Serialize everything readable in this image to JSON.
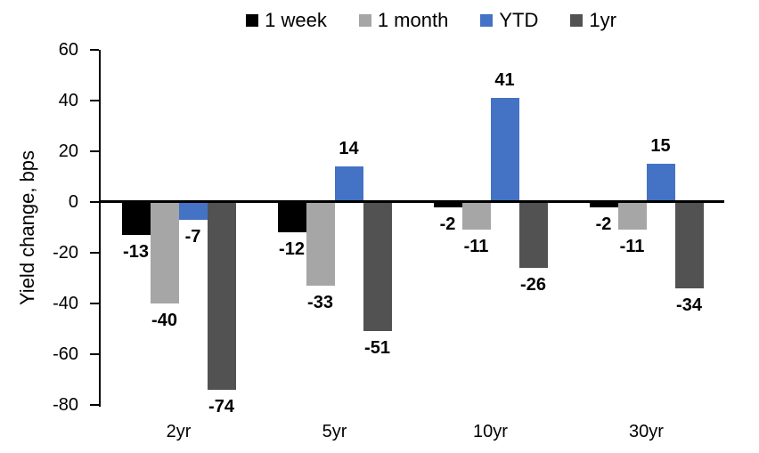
{
  "chart_data": {
    "type": "bar",
    "categories": [
      "2yr",
      "5yr",
      "10yr",
      "30yr"
    ],
    "series": [
      {
        "name": "1 week",
        "color": "#000000",
        "values": [
          -13,
          -12,
          -2,
          -2
        ]
      },
      {
        "name": "1 month",
        "color": "#a6a6a6",
        "values": [
          -40,
          -33,
          -11,
          -11
        ]
      },
      {
        "name": "YTD",
        "color": "#4472c4",
        "values": [
          -7,
          14,
          41,
          15
        ]
      },
      {
        "name": "1yr",
        "color": "#525252",
        "values": [
          -74,
          -51,
          -26,
          -34
        ]
      }
    ],
    "title": "",
    "xlabel": "",
    "ylabel": "Yield change, bps",
    "ylim": [
      -80,
      60
    ],
    "yticks": [
      60,
      40,
      20,
      0,
      -20,
      -40,
      -60,
      -80
    ],
    "legend_position": "top",
    "grid": false,
    "data_labels": true,
    "axis_color": "#000000",
    "background_color": "#ffffff"
  }
}
